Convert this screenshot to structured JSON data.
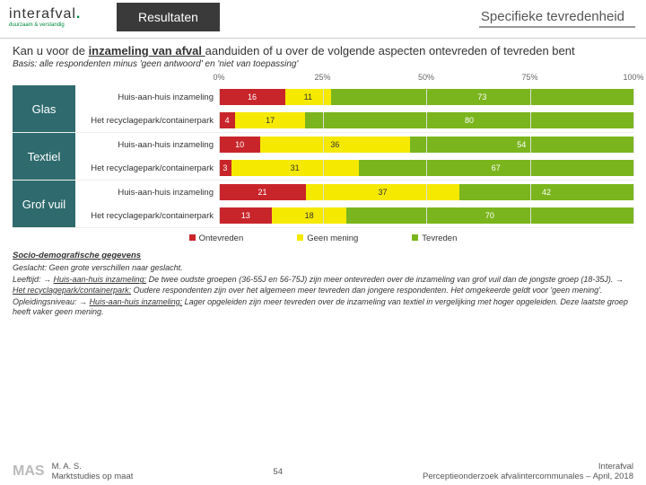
{
  "logo": {
    "name": "interafval",
    "sub": "duurzaam & verstandig"
  },
  "headerTab": "Resultaten",
  "pageTitle": "Specifieke tevredenheid",
  "question_pre": "Kan u voor de ",
  "question_u": "inzameling van afval ",
  "question_post": "aanduiden of u over de volgende aspecten ontevreden of tevreden bent",
  "basis": "Basis: alle respondenten minus 'geen antwoord' en 'niet van toepassing'",
  "ticks": [
    "0%",
    "25%",
    "50%",
    "75%",
    "100%"
  ],
  "colors": {
    "ont": "#c8252b",
    "geen": "#f5e900",
    "tev": "#7ab51d",
    "groupBg": "#2f6b6e"
  },
  "legend": [
    {
      "label": "Ontevreden",
      "color": "#c8252b"
    },
    {
      "label": "Geen mening",
      "color": "#f5e900"
    },
    {
      "label": "Tevreden",
      "color": "#7ab51d"
    }
  ],
  "groups": [
    {
      "label": "Glas",
      "rows": [
        {
          "label": "Huis-aan-huis inzameling",
          "vals": [
            16,
            11,
            73
          ]
        },
        {
          "label": "Het recyclagepark/containerpark",
          "vals": [
            4,
            17,
            80
          ]
        }
      ]
    },
    {
      "label": "Textiel",
      "rows": [
        {
          "label": "Huis-aan-huis inzameling",
          "vals": [
            10,
            36,
            54
          ]
        },
        {
          "label": "Het recyclagepark/containerpark",
          "vals": [
            3,
            31,
            67
          ]
        }
      ]
    },
    {
      "label": "Grof vuil",
      "rows": [
        {
          "label": "Huis-aan-huis inzameling",
          "vals": [
            21,
            37,
            42
          ]
        },
        {
          "label": "Het recyclagepark/containerpark",
          "vals": [
            13,
            18,
            70
          ]
        }
      ]
    }
  ],
  "socioTitle": "Socio-demografische gegevens",
  "socio": [
    "Geslacht: Geen grote verschillen naar geslacht.",
    "Leeftijd: → <span class='u'>Huis-aan-huis inzameling:</span> De twee oudste groepen (36-55J en 56-75J) zijn meer ontevreden over de inzameling van grof vuil dan de jongste groep (18-35J). → <span class='u'>Het recyclagepark/containerpark:</span> Oudere respondenten zijn over het algemeen meer tevreden dan jongere respondenten. Het omgekeerde geldt voor 'geen mening'.",
    "Opleidingsniveau: → <span class='u'>Huis-aan-huis inzameling:</span> Lager opgeleiden zijn meer tevreden over de inzameling van textiel in vergelijking met hoger opgeleiden. Deze laatste groep heeft vaker geen mening."
  ],
  "footer": {
    "leftLogo": "MAS",
    "left1": "M. A. S.",
    "left2": "Marktstudies op maat",
    "pageNum": "54",
    "right1": "Interafval",
    "right2": "Perceptieonderzoek afvalintercommunales – April, 2018"
  }
}
